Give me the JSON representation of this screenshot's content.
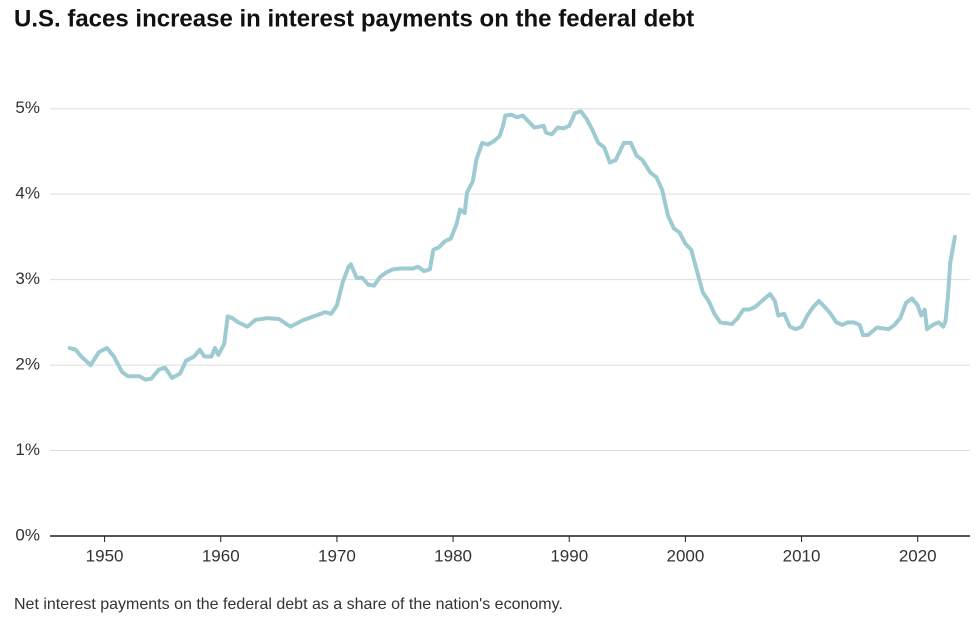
{
  "chart_data": {
    "type": "line",
    "title": "U.S. faces increase in interest payments on the federal debt",
    "caption": "Net interest payments on the federal debt as a share of the nation's economy.",
    "x": [
      1947,
      1947.5,
      1948,
      1948.8,
      1949.5,
      1950.2,
      1950.8,
      1951.5,
      1952,
      1953,
      1953.5,
      1954,
      1954.7,
      1955.2,
      1955.8,
      1956.5,
      1957,
      1957.7,
      1958.2,
      1958.6,
      1959.2,
      1959.5,
      1959.8,
      1960.3,
      1960.6,
      1961,
      1961.5,
      1962.3,
      1963,
      1964,
      1965,
      1966,
      1967,
      1968,
      1969,
      1969.5,
      1970,
      1970.5,
      1971,
      1971.2,
      1971.7,
      1972.2,
      1972.7,
      1973.2,
      1973.7,
      1974.2,
      1974.8,
      1975.5,
      1976.5,
      1977,
      1977.5,
      1978,
      1978.3,
      1978.8,
      1979.3,
      1979.8,
      1980.3,
      1980.6,
      1981,
      1981.2,
      1981.7,
      1982,
      1982.5,
      1983,
      1983.5,
      1984,
      1984.3,
      1984.5,
      1985,
      1985.5,
      1986,
      1986.5,
      1987,
      1987.8,
      1988,
      1988.5,
      1989,
      1989.5,
      1990,
      1990.5,
      1991,
      1991.5,
      1992,
      1992.5,
      1993,
      1993.5,
      1994,
      1994.7,
      1995.3,
      1995.8,
      1996.3,
      1997,
      1997.5,
      1998,
      1998.5,
      1999,
      1999.5,
      2000,
      2000.5,
      2001,
      2001.5,
      2002,
      2002.5,
      2003,
      2004,
      2004.5,
      2005,
      2005.5,
      2006,
      2007,
      2007.3,
      2007.7,
      2008,
      2008.5,
      2009,
      2009.5,
      2010,
      2010.5,
      2011,
      2011.5,
      2012,
      2012.5,
      2013,
      2013.5,
      2014,
      2014.5,
      2015,
      2015.3,
      2015.7,
      2016.5,
      2017.5,
      2018,
      2018.5,
      2019,
      2019.5,
      2020,
      2020.3,
      2020.6,
      2020.8,
      2021.3,
      2021.8,
      2022.2,
      2022.4,
      2022.6,
      2022.8,
      2023.2
    ],
    "series": [
      {
        "color": "#9ecad1",
        "values": [
          2.2,
          2.18,
          2.1,
          2.0,
          2.15,
          2.2,
          2.1,
          1.92,
          1.87,
          1.87,
          1.83,
          1.84,
          1.95,
          1.97,
          1.85,
          1.9,
          2.05,
          2.1,
          2.18,
          2.1,
          2.1,
          2.2,
          2.12,
          2.25,
          2.57,
          2.55,
          2.5,
          2.45,
          2.53,
          2.55,
          2.54,
          2.45,
          2.52,
          2.57,
          2.62,
          2.6,
          2.7,
          2.97,
          3.15,
          3.18,
          3.02,
          3.02,
          2.94,
          2.93,
          3.03,
          3.08,
          3.12,
          3.13,
          3.13,
          3.15,
          3.1,
          3.12,
          3.35,
          3.38,
          3.45,
          3.48,
          3.65,
          3.82,
          3.78,
          4.02,
          4.15,
          4.4,
          4.6,
          4.58,
          4.62,
          4.68,
          4.8,
          4.92,
          4.93,
          4.9,
          4.92,
          4.85,
          4.78,
          4.8,
          4.72,
          4.7,
          4.78,
          4.77,
          4.8,
          4.95,
          4.97,
          4.88,
          4.75,
          4.6,
          4.55,
          4.37,
          4.4,
          4.6,
          4.6,
          4.45,
          4.4,
          4.25,
          4.2,
          4.05,
          3.75,
          3.6,
          3.55,
          3.42,
          3.35,
          3.1,
          2.85,
          2.75,
          2.6,
          2.5,
          2.48,
          2.55,
          2.65,
          2.65,
          2.68,
          2.8,
          2.83,
          2.75,
          2.58,
          2.6,
          2.45,
          2.42,
          2.45,
          2.58,
          2.68,
          2.75,
          2.68,
          2.6,
          2.5,
          2.47,
          2.5,
          2.5,
          2.47,
          2.35,
          2.35,
          2.44,
          2.42,
          2.47,
          2.55,
          2.73,
          2.78,
          2.7,
          2.58,
          2.65,
          2.42,
          2.47,
          2.5,
          2.45,
          2.52,
          2.8,
          3.2,
          3.5
        ]
      }
    ],
    "xlim": [
      1945.3,
      2024.5
    ],
    "xticks": [
      1950,
      1960,
      1970,
      1980,
      1990,
      2000,
      2010,
      2020
    ],
    "ylim": [
      0,
      5.5
    ],
    "yticks": [
      {
        "value": 0,
        "label": "0%"
      },
      {
        "value": 1,
        "label": "1%"
      },
      {
        "value": 2,
        "label": "2%"
      },
      {
        "value": 3,
        "label": "3%"
      },
      {
        "value": 4,
        "label": "4%"
      },
      {
        "value": 5,
        "label": "5%"
      }
    ],
    "grid": true
  }
}
